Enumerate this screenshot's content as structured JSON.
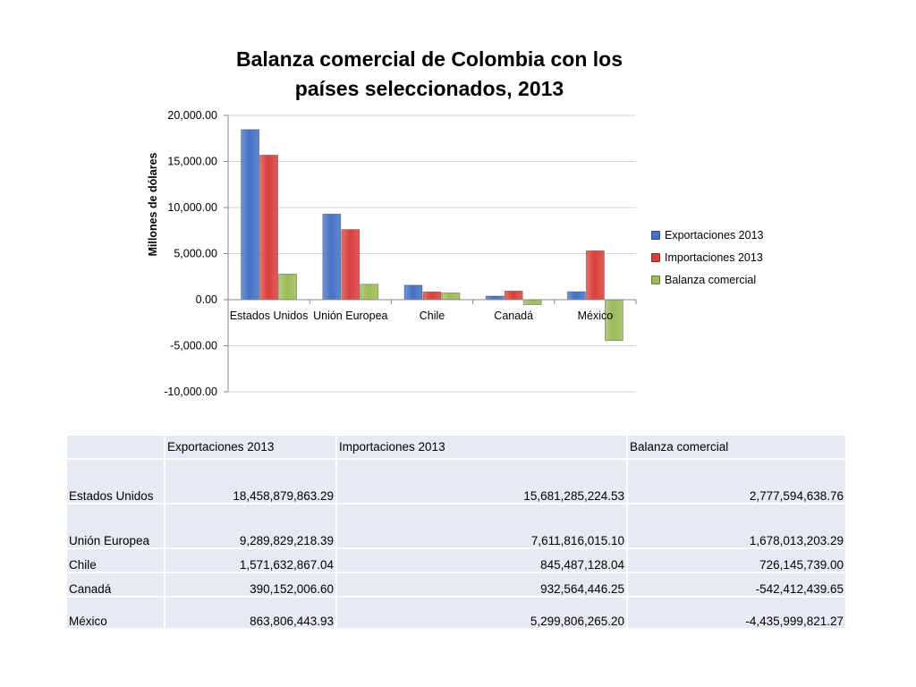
{
  "chart_data": {
    "type": "bar",
    "title": "Balanza comercial de Colombia con los países seleccionados, 2013",
    "ylabel": "Millones de dólares",
    "xlabel": "",
    "ylim": [
      -10000,
      20000
    ],
    "yticks": [
      "20,000.00",
      "15,000.00",
      "10,000.00",
      "5,000.00",
      "0.00",
      "-5,000.00",
      "-10,000.00"
    ],
    "ytick_values": [
      20000,
      15000,
      10000,
      5000,
      0,
      -5000,
      -10000
    ],
    "categories": [
      "Estados Unidos",
      "Unión Europea",
      "Chile",
      "Canadá",
      "México"
    ],
    "series": [
      {
        "name": "Exportaciones 2013",
        "color": "#4472c4",
        "values": [
          18458.88,
          9289.83,
          1571.63,
          390.15,
          863.81
        ]
      },
      {
        "name": "Importaciones 2013",
        "color": "#d9403b",
        "values": [
          15681.29,
          7611.82,
          845.49,
          932.56,
          5299.81
        ]
      },
      {
        "name": "Balanza comercial",
        "color": "#9bbb59",
        "values": [
          2777.59,
          1678.01,
          726.15,
          -542.41,
          -4436.0
        ]
      }
    ],
    "grid": true,
    "legend_position": "right"
  },
  "table": {
    "headers": [
      "",
      "Exportaciones 2013",
      "Importaciones 2013",
      "Balanza comercial"
    ],
    "rows": [
      [
        "Estados Unidos",
        "18,458,879,863.29",
        "15,681,285,224.53",
        "2,777,594,638.76"
      ],
      [
        "Unión Europea",
        "9,289,829,218.39",
        "7,611,816,015.10",
        "1,678,013,203.29"
      ],
      [
        "Chile",
        "1,571,632,867.04",
        "845,487,128.04",
        "726,145,739.00"
      ],
      [
        "Canadá",
        "390,152,006.60",
        "932,564,446.25",
        "-542,412,439.65"
      ],
      [
        "México",
        "863,806,443.93",
        "5,299,806,265.20",
        "-4,435,999,821.27"
      ]
    ]
  }
}
